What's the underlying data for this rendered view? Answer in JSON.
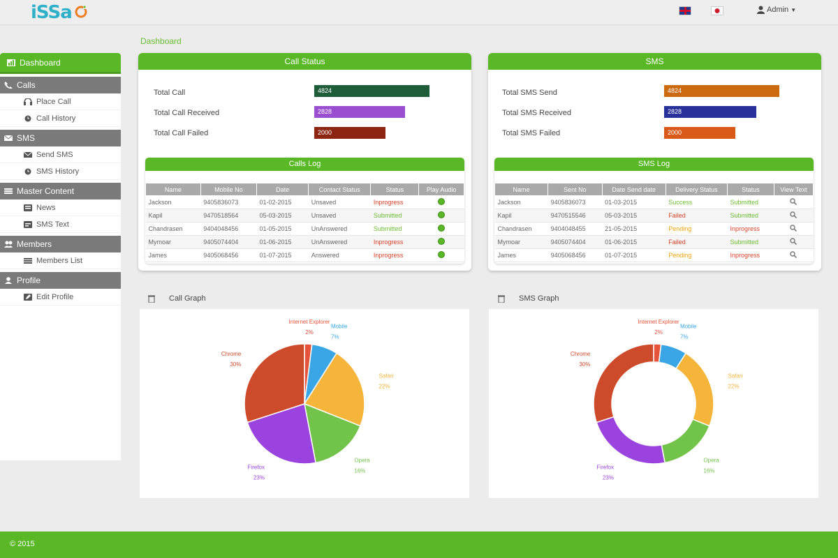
{
  "brand": {
    "logo_text": "iSSa"
  },
  "header": {
    "user_name": "Admin"
  },
  "breadcrumb": "Dashboard",
  "sidebar": {
    "active": "Dashboard",
    "sections": [
      {
        "title": "Calls",
        "items": [
          "Place Call",
          "Call History"
        ]
      },
      {
        "title": "SMS",
        "items": [
          "Send SMS",
          "SMS History"
        ]
      },
      {
        "title": "Master Content",
        "items": [
          "News",
          "SMS Text"
        ]
      },
      {
        "title": "Members",
        "items": [
          "Members List"
        ]
      },
      {
        "title": "Profile",
        "items": [
          "Edit Profile"
        ]
      }
    ]
  },
  "call_status": {
    "title": "Call Status",
    "stats": [
      {
        "label": "Total Call",
        "value": "4824",
        "pct": 1.0,
        "color": "#1f5c3a"
      },
      {
        "label": "Total Call Received",
        "value": "2828",
        "pct": 0.79,
        "color": "#9a4fd0"
      },
      {
        "label": "Total Call Failed",
        "value": "2000",
        "pct": 0.62,
        "color": "#8c2613"
      }
    ]
  },
  "sms_status": {
    "title": "SMS",
    "stats": [
      {
        "label": "Total SMS Send",
        "value": "4824",
        "pct": 1.0,
        "color": "#cc6a10"
      },
      {
        "label": "Total SMS Received",
        "value": "2828",
        "pct": 0.8,
        "color": "#28319a"
      },
      {
        "label": "Total SMS Failed",
        "value": "2000",
        "pct": 0.62,
        "color": "#d95a18"
      }
    ]
  },
  "calls_log": {
    "title": "Calls Log",
    "columns": [
      "Name",
      "Mobile No",
      "Date",
      "Contact Status",
      "Status",
      "Play Audio"
    ],
    "rows": [
      {
        "cells": [
          "Jackson",
          "9405836073",
          "01-02-2015",
          "Unsaved"
        ],
        "status": "Inprogress",
        "status_class": "st-red"
      },
      {
        "cells": [
          "Kapil",
          "9470518564",
          "05-03-2015",
          "Unsaved"
        ],
        "status": "Submitted",
        "status_class": "st-green"
      },
      {
        "cells": [
          "Chandrasen",
          "9404048456",
          "01-05-2015",
          "UnAnswered"
        ],
        "status": "Submitted",
        "status_class": "st-green"
      },
      {
        "cells": [
          "Mymoar",
          "9405074404",
          "01-06-2015",
          "UnAnswered"
        ],
        "status": "Inprogress",
        "status_class": "st-red"
      },
      {
        "cells": [
          "James",
          "9405068456",
          "01-07-2015",
          "Answered"
        ],
        "status": "Inprogress",
        "status_class": "st-red"
      }
    ]
  },
  "sms_log": {
    "title": "SMS Log",
    "columns": [
      "Name",
      "Sent No",
      "Date Send date",
      "Delivery Status",
      "Status",
      "View Text"
    ],
    "rows": [
      {
        "cells": [
          "Jackson",
          "9405836073",
          "01-03-2015"
        ],
        "delivery": "Success",
        "delivery_class": "st-green",
        "status": "Submitted",
        "status_class": "st-green"
      },
      {
        "cells": [
          "Kapil",
          "9470515546",
          "05-03-2015"
        ],
        "delivery": "Failed",
        "delivery_class": "st-red",
        "status": "Submitted",
        "status_class": "st-green"
      },
      {
        "cells": [
          "Chandrasen",
          "9404048455",
          "21-05-2015"
        ],
        "delivery": "Pending",
        "delivery_class": "st-orange",
        "status": "Inprogress",
        "status_class": "st-red"
      },
      {
        "cells": [
          "Mymoar",
          "9405074404",
          "01-06-2015"
        ],
        "delivery": "Failed",
        "delivery_class": "st-red",
        "status": "Submitted",
        "status_class": "st-green"
      },
      {
        "cells": [
          "James",
          "9405068456",
          "01-07-2015"
        ],
        "delivery": "Pending",
        "delivery_class": "st-orange",
        "status": "Inprogress",
        "status_class": "st-red"
      }
    ]
  },
  "graphs": {
    "call_title": "Call Graph",
    "sms_title": "SMS Graph"
  },
  "chart_data": [
    {
      "type": "pie",
      "title": "Call Graph",
      "categories": [
        "Internet Explorer",
        "Mobile",
        "Safari",
        "Opera",
        "Firefox",
        "Chrome"
      ],
      "values": [
        2,
        7,
        22,
        16,
        23,
        30
      ],
      "labels": [
        "2%",
        "7%",
        "22%",
        "16%",
        "23%",
        "30%"
      ],
      "colors": [
        "#e5533b",
        "#3aa6e6",
        "#f5b43a",
        "#72c34a",
        "#9b43de",
        "#cd4a2a"
      ]
    },
    {
      "type": "pie",
      "donut": true,
      "title": "SMS Graph",
      "categories": [
        "Internet Explorer",
        "Mobile",
        "Safari",
        "Opera",
        "Firefox",
        "Chrome"
      ],
      "values": [
        2,
        7,
        22,
        16,
        23,
        30
      ],
      "labels": [
        "2%",
        "7%",
        "22%",
        "16%",
        "23%",
        "30%"
      ],
      "colors": [
        "#e5533b",
        "#3aa6e6",
        "#f5b43a",
        "#72c34a",
        "#9b43de",
        "#cd4a2a"
      ]
    }
  ],
  "footer": {
    "text": "© 2015"
  }
}
